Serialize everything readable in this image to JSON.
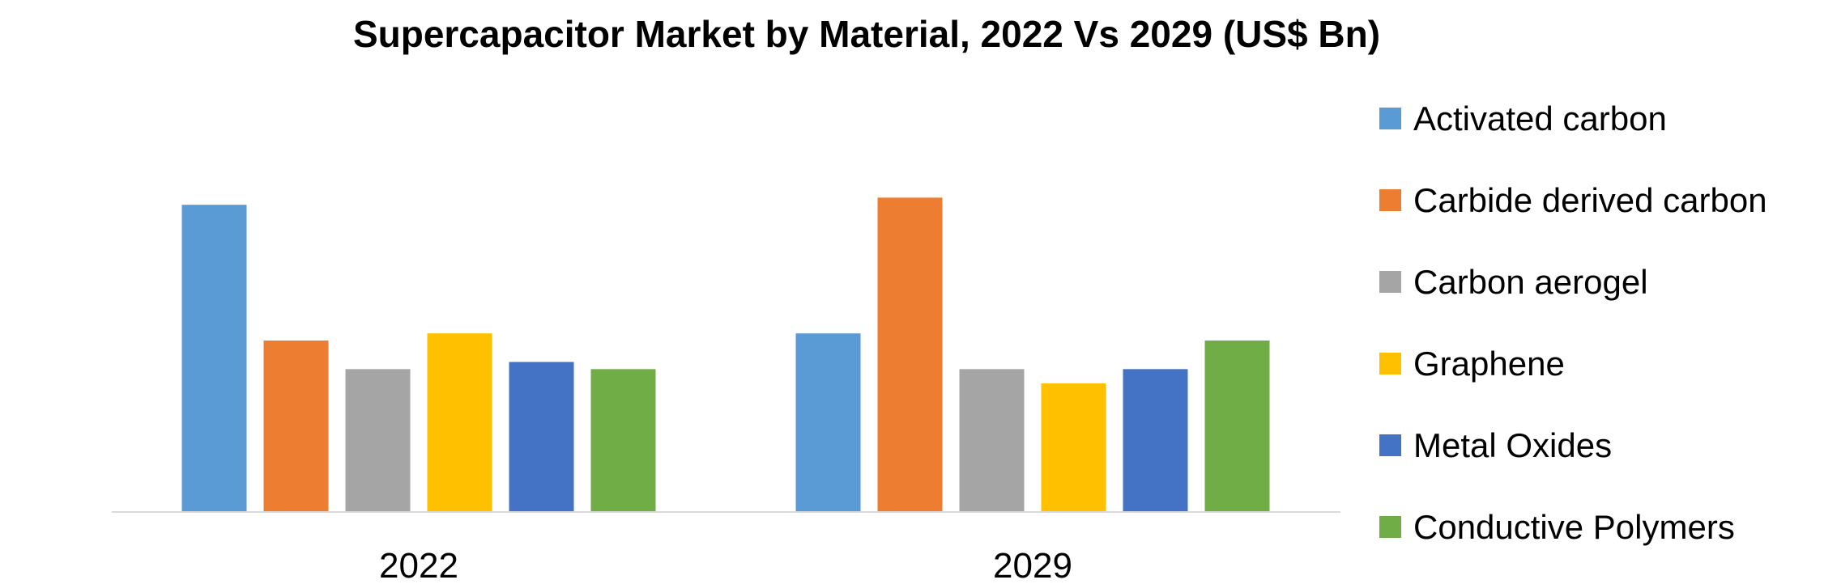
{
  "chart_data": {
    "type": "bar",
    "title": "Supercapacitor Market by Material, 2022 Vs 2029 (US$ Bn)",
    "xlabel": "",
    "ylabel": "",
    "categories": [
      "2022",
      "2029"
    ],
    "ylim": [
      0,
      30
    ],
    "grid": false,
    "legend_position": "right",
    "series": [
      {
        "name": "Activated carbon",
        "color": "#5B9BD5",
        "values": [
          21.5,
          12.5
        ]
      },
      {
        "name": "Carbide derived carbon",
        "color": "#ED7D31",
        "values": [
          12.0,
          22.0
        ]
      },
      {
        "name": "Carbon aerogel",
        "color": "#A5A5A5",
        "values": [
          10.0,
          10.0
        ]
      },
      {
        "name": "Graphene",
        "color": "#FFC000",
        "values": [
          12.5,
          9.0
        ]
      },
      {
        "name": "Metal Oxides",
        "color": "#4472C4",
        "values": [
          10.5,
          10.0
        ]
      },
      {
        "name": "Conductive Polymers",
        "color": "#70AD47",
        "values": [
          10.0,
          12.0
        ]
      }
    ],
    "axis_color": "#D9D9D9"
  }
}
